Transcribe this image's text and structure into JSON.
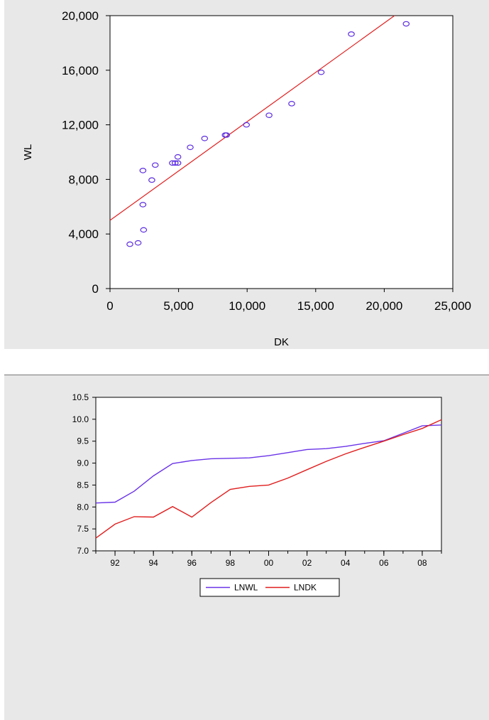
{
  "chart_data": [
    {
      "type": "scatter",
      "title": "",
      "xlabel": "DK",
      "ylabel": "WL",
      "xlim": [
        0,
        25000
      ],
      "ylim": [
        0,
        20000
      ],
      "xticks": [
        0,
        5000,
        10000,
        15000,
        20000,
        25000
      ],
      "xtick_labels": [
        "0",
        "5,000",
        "10,000",
        "15,000",
        "20,000",
        "25,000"
      ],
      "yticks": [
        0,
        4000,
        8000,
        12000,
        16000,
        20000
      ],
      "ytick_labels": [
        "0",
        "4,000",
        "8,000",
        "12,000",
        "16,000",
        "20,000"
      ],
      "grid": false,
      "marker_color": "#5b2ce0",
      "line_color": "#e02020",
      "points": [
        {
          "x": 1450,
          "y": 3250
        },
        {
          "x": 2050,
          "y": 3350
        },
        {
          "x": 2450,
          "y": 4300
        },
        {
          "x": 2400,
          "y": 6150
        },
        {
          "x": 2400,
          "y": 8650
        },
        {
          "x": 3050,
          "y": 7950
        },
        {
          "x": 3300,
          "y": 9050
        },
        {
          "x": 4550,
          "y": 9200
        },
        {
          "x": 4750,
          "y": 9200
        },
        {
          "x": 4950,
          "y": 9200
        },
        {
          "x": 4950,
          "y": 9650
        },
        {
          "x": 5850,
          "y": 10350
        },
        {
          "x": 6900,
          "y": 11000
        },
        {
          "x": 8400,
          "y": 11250
        },
        {
          "x": 8500,
          "y": 11250
        },
        {
          "x": 9950,
          "y": 12000
        },
        {
          "x": 11600,
          "y": 12700
        },
        {
          "x": 13250,
          "y": 13550
        },
        {
          "x": 15400,
          "y": 15850
        },
        {
          "x": 17600,
          "y": 18650
        },
        {
          "x": 21600,
          "y": 19400
        }
      ],
      "fit_line": [
        {
          "x": 0,
          "y": 5000
        },
        {
          "x": 20750,
          "y": 20000
        }
      ]
    },
    {
      "type": "line",
      "title": "",
      "xlabel": "",
      "ylabel": "",
      "x": [
        1991,
        1992,
        1993,
        1994,
        1995,
        1996,
        1997,
        1998,
        1999,
        2000,
        2001,
        2002,
        2003,
        2004,
        2005,
        2006,
        2007,
        2008,
        2009
      ],
      "xlim": [
        1991,
        2009
      ],
      "xticks": [
        1992,
        1994,
        1996,
        1998,
        2000,
        2002,
        2004,
        2006,
        2008
      ],
      "xtick_labels": [
        "92",
        "94",
        "96",
        "98",
        "00",
        "02",
        "04",
        "06",
        "08"
      ],
      "ylim": [
        7.0,
        10.5
      ],
      "yticks": [
        7.0,
        7.5,
        8.0,
        8.5,
        9.0,
        9.5,
        10.0,
        10.5
      ],
      "ytick_labels": [
        "7.0",
        "7.5",
        "8.0",
        "8.5",
        "9.0",
        "9.5",
        "10.0",
        "10.5"
      ],
      "grid": false,
      "legend_position": "bottom-center",
      "series": [
        {
          "name": "LNWL",
          "color": "#6a33e8",
          "values": [
            8.09,
            8.11,
            8.36,
            8.71,
            8.99,
            9.06,
            9.1,
            9.11,
            9.12,
            9.17,
            9.24,
            9.31,
            9.33,
            9.38,
            9.45,
            9.51,
            9.68,
            9.85,
            9.87
          ]
        },
        {
          "name": "LNDK",
          "color": "#e01e1e",
          "values": [
            7.29,
            7.61,
            7.78,
            7.77,
            8.01,
            7.77,
            8.1,
            8.4,
            8.47,
            8.5,
            8.66,
            8.85,
            9.04,
            9.21,
            9.36,
            9.5,
            9.65,
            9.79,
            9.99
          ]
        }
      ]
    }
  ]
}
